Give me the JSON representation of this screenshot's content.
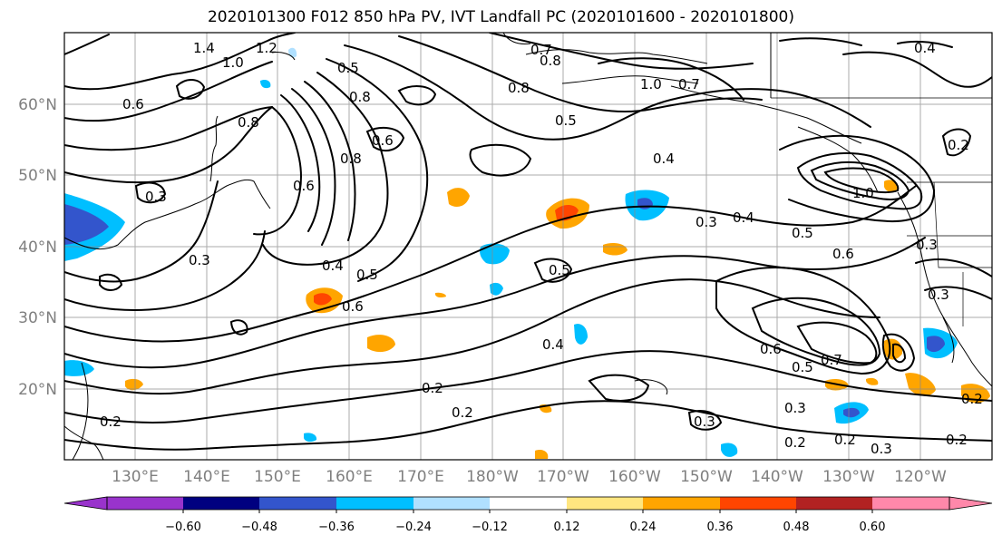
{
  "title": "2020101300 F012 850 hPa PV, IVT Landfall PC (2020101600 - 2020101800)",
  "lat_labels": [
    "60°N",
    "50°N",
    "40°N",
    "30°N",
    "20°N"
  ],
  "lon_labels": [
    "130°E",
    "140°E",
    "150°E",
    "160°E",
    "170°E",
    "180°W",
    "170°W",
    "160°W",
    "150°W",
    "140°W",
    "130°W",
    "120°W"
  ],
  "contour_labels": [
    "1.4",
    "1.0",
    "1.2",
    "0.6",
    "0.5",
    "0.7",
    "0.8",
    "0.8",
    "1.0",
    "0.7",
    "0.4",
    "0.2",
    "0.8",
    "0.5",
    "0.8",
    "0.8",
    "0.6",
    "0.6",
    "0.4",
    "0.3",
    "0.4",
    "0.5",
    "0.3",
    "1.0",
    "0.6",
    "0.3",
    "0.5",
    "0.4",
    "0.5",
    "0.6",
    "0.3",
    "0.7",
    "0.6",
    "0.5",
    "0.3",
    "0.2",
    "0.2",
    "0.4",
    "0.3",
    "0.2",
    "0.2",
    "0.3",
    "0.2",
    "0.2",
    "0.3",
    "0.2"
  ],
  "colorbar": {
    "colors": [
      "#9933cc",
      "#000080",
      "#3355cc",
      "#00bfff",
      "#b0e0ff",
      "#ffffff",
      "#ffe680",
      "#ffa500",
      "#ff4500",
      "#b22222",
      "#ff88aa"
    ],
    "tick_labels": [
      "−0.60",
      "−0.48",
      "−0.36",
      "−0.24",
      "−0.12",
      "0.12",
      "0.24",
      "0.36",
      "0.48",
      "0.60"
    ]
  },
  "colors": {
    "contour": "#000000",
    "grid": "#888888",
    "coast": "#000000",
    "axis_label": "#7f7f7f"
  }
}
